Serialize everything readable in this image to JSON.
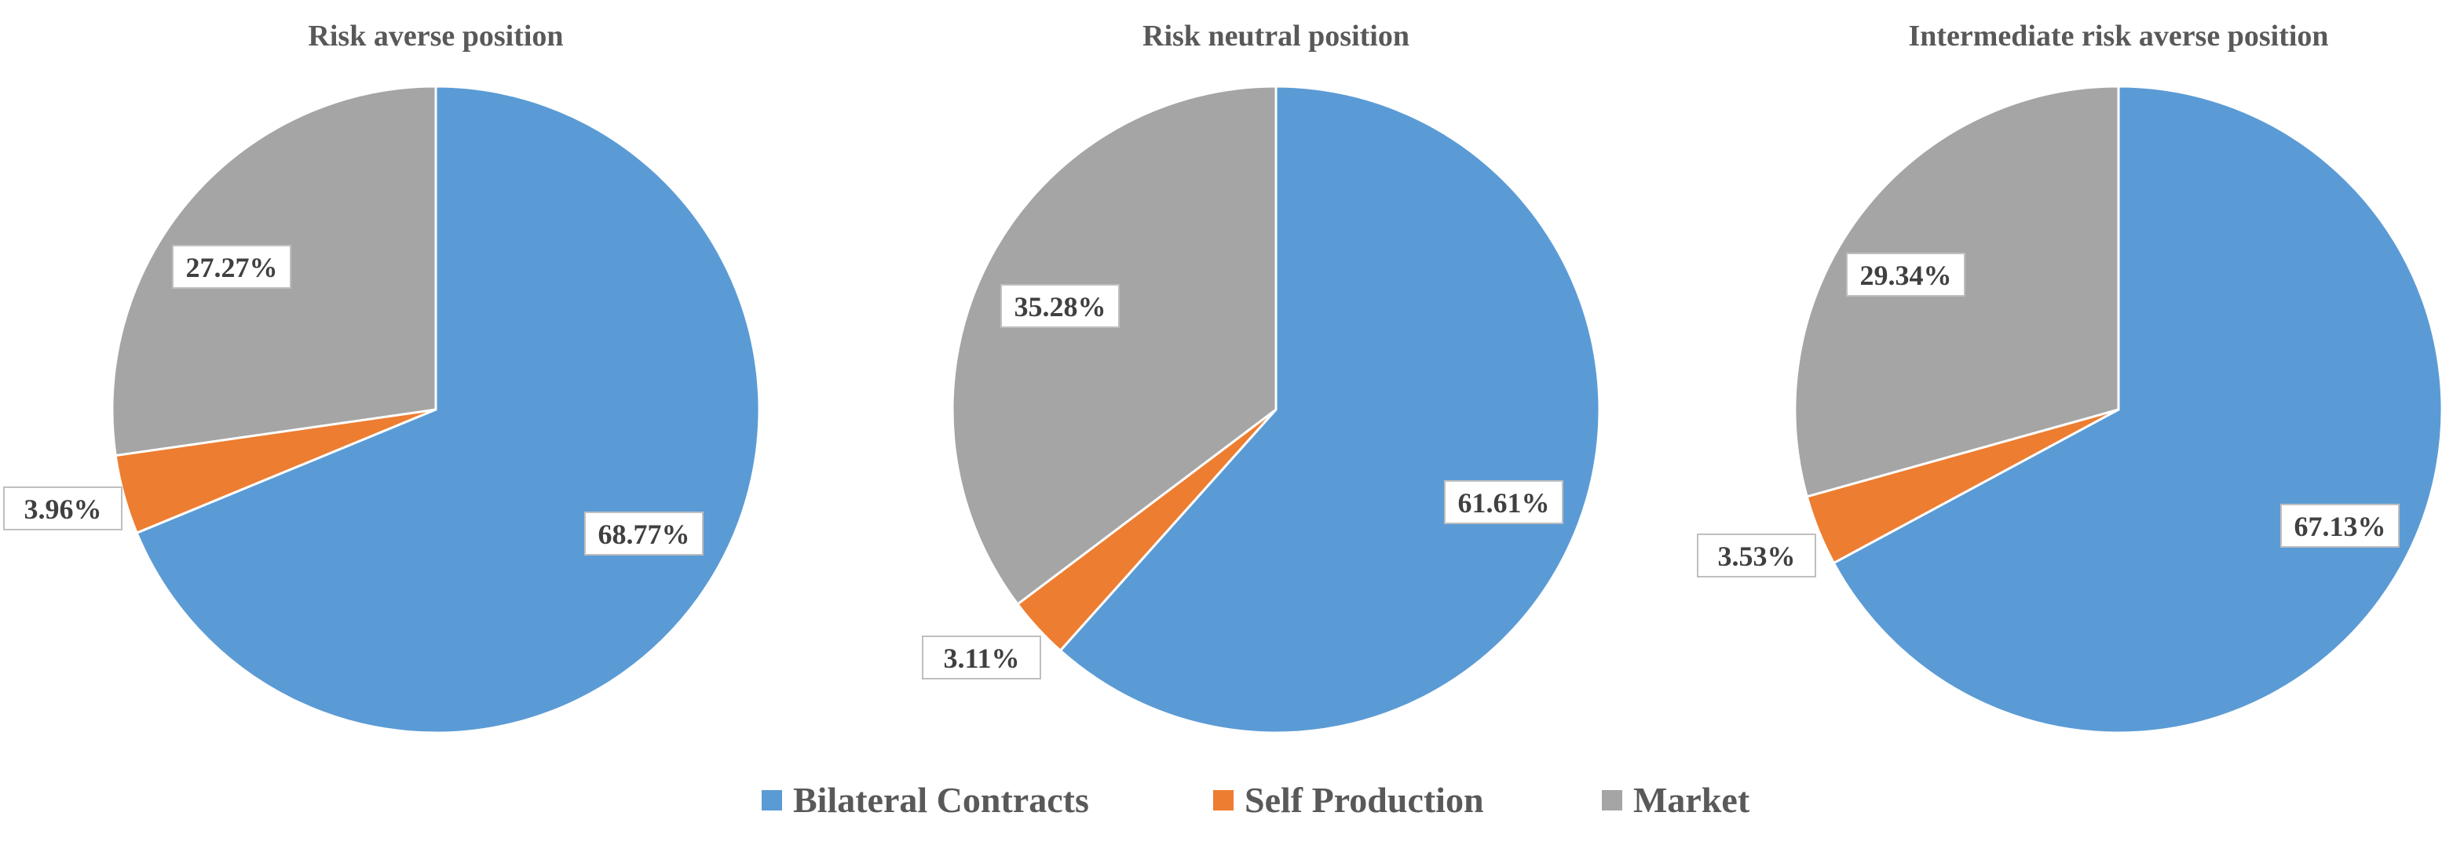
{
  "chart_data": [
    {
      "type": "pie",
      "title": "Risk averse position",
      "categories": [
        "Bilateral Contracts",
        "Self Production",
        "Market"
      ],
      "values": [
        68.77,
        3.96,
        27.27
      ],
      "labels": [
        "68.77%",
        "3.96%",
        "27.27%"
      ]
    },
    {
      "type": "pie",
      "title": "Risk neutral position",
      "categories": [
        "Bilateral Contracts",
        "Self Production",
        "Market"
      ],
      "values": [
        61.61,
        3.11,
        35.28
      ],
      "labels": [
        "61.61%",
        "3.11%",
        "35.28%"
      ]
    },
    {
      "type": "pie",
      "title": "Intermediate risk averse position",
      "categories": [
        "Bilateral Contracts",
        "Self Production",
        "Market"
      ],
      "values": [
        67.13,
        3.53,
        29.34
      ],
      "labels": [
        "67.13%",
        "3.53%",
        "29.34%"
      ]
    }
  ],
  "legend": {
    "placement": "bottom",
    "items": [
      {
        "name": "Bilateral Contracts",
        "color": "#5B9BD5"
      },
      {
        "name": "Self Production",
        "color": "#ED7D31"
      },
      {
        "name": "Market",
        "color": "#A5A5A5"
      }
    ]
  },
  "colors": [
    "#5B9BD5",
    "#ED7D31",
    "#A5A5A5"
  ]
}
